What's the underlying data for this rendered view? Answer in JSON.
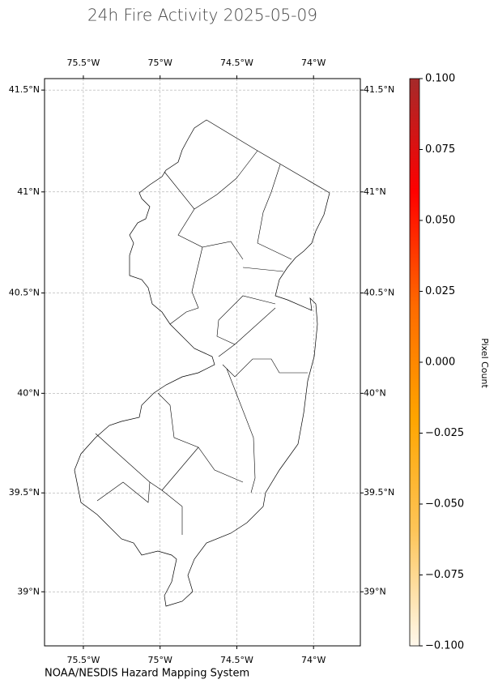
{
  "title": "24h Fire Activity 2025-05-09",
  "map": {
    "xlim": [
      -75.753,
      -73.695
    ],
    "ylim": [
      38.725,
      41.556
    ],
    "projection": "mercator",
    "grid": true,
    "xticks": [
      {
        "value": -75.5,
        "label": "75.5°W"
      },
      {
        "value": -75,
        "label": "75°W"
      },
      {
        "value": -74.5,
        "label": "74.5°W"
      },
      {
        "value": -74,
        "label": "74°W"
      }
    ],
    "yticks": [
      {
        "value": 39,
        "label": "39°N"
      },
      {
        "value": 39.5,
        "label": "39.5°N"
      },
      {
        "value": 40,
        "label": "40°N"
      },
      {
        "value": 40.5,
        "label": "40.5°N"
      },
      {
        "value": 41,
        "label": "41°N"
      },
      {
        "value": 41.5,
        "label": "41.5°N"
      }
    ]
  },
  "colorbar": {
    "label": "Pixel Count",
    "lim": [
      -0.1,
      0.1
    ],
    "colors": [
      "#fff8ec",
      "#fdc55a",
      "#ffa500",
      "#ff6a00",
      "#ff0000",
      "#a52a2a"
    ],
    "ticks": [
      {
        "value": -0.1,
        "label": "−0.100"
      },
      {
        "value": -0.075,
        "label": "−0.075"
      },
      {
        "value": -0.05,
        "label": "−0.050"
      },
      {
        "value": -0.025,
        "label": "−0.025"
      },
      {
        "value": 0,
        "label": "0.000"
      },
      {
        "value": 0.025,
        "label": "0.025"
      },
      {
        "value": 0.05,
        "label": "0.050"
      },
      {
        "value": 0.075,
        "label": "0.075"
      },
      {
        "value": 0.1,
        "label": "0.100"
      }
    ]
  },
  "source": "NOAA/NESDIS Hazard Mapping System"
}
